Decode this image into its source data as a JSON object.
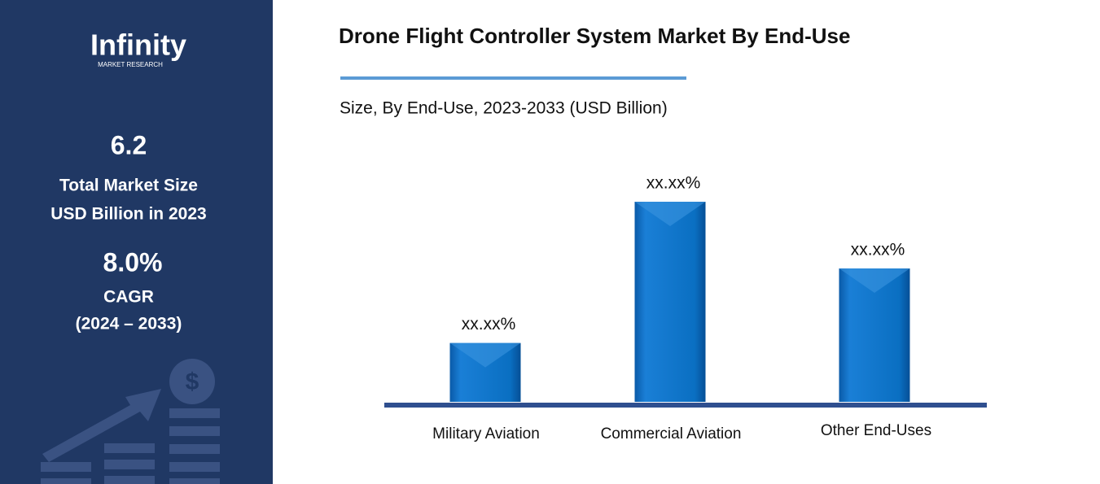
{
  "sidebar": {
    "logo": "Infinity",
    "logo_sub": "MARKET RESEARCH",
    "market_size": "6.2",
    "market_size_label_1": "Total Market Size",
    "market_size_label_2": "USD Billion in 2023",
    "cagr": "8.0%",
    "cagr_label": "CAGR",
    "cagr_period": "(2024 – 2033)"
  },
  "chart_data": {
    "type": "bar",
    "title": "Drone Flight Controller System Market By End-Use",
    "subtitle": "Size, By End-Use, 2023-2033 (USD Billion)",
    "categories": [
      "Military Aviation",
      "Commercial Aviation",
      "Other End-Uses"
    ],
    "values": [
      15,
      51,
      34
    ],
    "value_labels": [
      "xx.xx%",
      "xx.xx%",
      "xx.xx%"
    ],
    "color": "#0a6fc2"
  }
}
